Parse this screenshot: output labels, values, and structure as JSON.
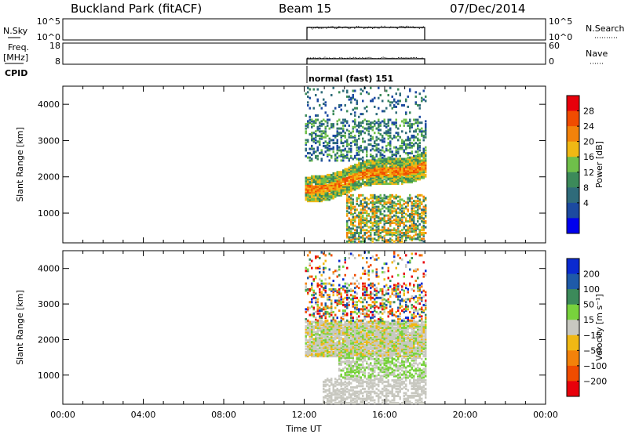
{
  "header": {
    "title": "Buckland Park (fitACF)",
    "beam": "Beam 15",
    "date": "07/Dec/2014"
  },
  "nsky_panel": {
    "left_label": "N.Sky",
    "right_label": "N.Search",
    "left_ticks": [
      "10^5",
      "10^0"
    ],
    "right_ticks": [
      "10^5",
      "10^0"
    ]
  },
  "freq_panel": {
    "left_label_1": "Freq.",
    "left_label_2": "[MHz]",
    "right_label": "Nave",
    "left_ticks": [
      "18",
      "8"
    ],
    "right_ticks": [
      "60",
      "0"
    ]
  },
  "cpid": {
    "label": "CPID",
    "mode_text": "normal (fast) 151"
  },
  "chart_data": [
    {
      "type": "heatmap",
      "name": "power",
      "ylabel": "Slant Range [km]",
      "y_ticks": [
        1000,
        2000,
        3000,
        4000
      ],
      "ylim": [
        180,
        4500
      ],
      "x_range_hours": [
        0,
        24
      ],
      "data_range_hours": [
        12,
        18
      ],
      "colorbar_label": "Power [dB]",
      "colorbar_ticks": [
        "28",
        "24",
        "20",
        "16",
        "12",
        "8",
        "4"
      ],
      "colorbar_colors": [
        "#e8000b",
        "#f04c00",
        "#f3820a",
        "#f0b814",
        "#6fbf4a",
        "#3c8a5a",
        "#2f6b7a",
        "#1c4aa0",
        "#0000ee"
      ]
    },
    {
      "type": "heatmap",
      "name": "velocity",
      "ylabel": "Slant Range [km]",
      "y_ticks": [
        1000,
        2000,
        3000,
        4000
      ],
      "ylim": [
        180,
        4500
      ],
      "x_range_hours": [
        0,
        24
      ],
      "data_range_hours": [
        12,
        18
      ],
      "colorbar_label": "Velocity [m s⁻¹]",
      "colorbar_ticks": [
        "200",
        "100",
        "50",
        "15",
        "−15",
        "−50",
        "−100",
        "−200"
      ],
      "colorbar_colors": [
        "#0a2ad0",
        "#1e5aa8",
        "#3c8a5a",
        "#78d23c",
        "#c8c8c0",
        "#f0b814",
        "#f3820a",
        "#f04c00",
        "#e8000b"
      ]
    }
  ],
  "time_axis": {
    "label": "Time UT",
    "ticks": [
      "00:00",
      "04:00",
      "08:00",
      "12:00",
      "16:00",
      "20:00",
      "00:00"
    ]
  }
}
